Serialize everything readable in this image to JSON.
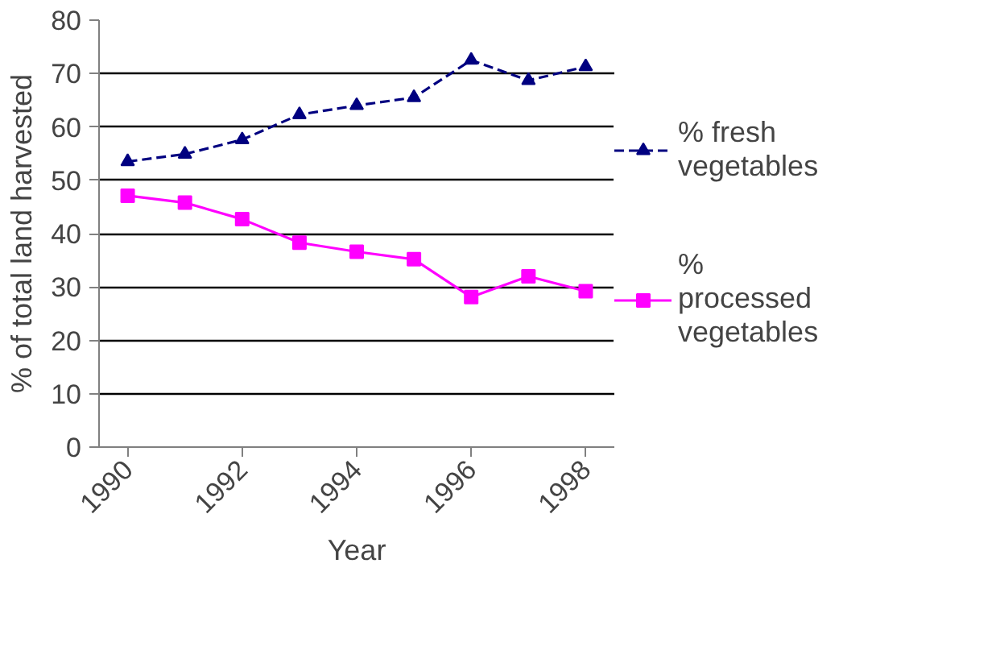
{
  "chart_data": {
    "type": "line",
    "xlabel": "Year",
    "ylabel": "% of total land harvested",
    "categories": [
      "1990",
      null,
      "1992",
      null,
      "1994",
      null,
      "1996",
      null,
      "1998"
    ],
    "series": [
      {
        "name": "% fresh vegetables",
        "color": "#000080",
        "marker": "triangle",
        "line_style": "dashed",
        "values": [
          53.5,
          54.9,
          57.6,
          62.3,
          64,
          65.5,
          72.5,
          68.7,
          71.3
        ]
      },
      {
        "name": "% processed vegetables",
        "color": "#ff00ff",
        "marker": "square",
        "line_style": "solid",
        "values": [
          47.1,
          45.8,
          42.7,
          38.3,
          36.6,
          35.2,
          28.1,
          32.0,
          29.2
        ]
      }
    ],
    "ylim": [
      0,
      80
    ],
    "yticks": [
      0,
      10,
      20,
      30,
      40,
      50,
      60,
      70,
      80
    ],
    "grid": "y",
    "legend": "right"
  }
}
